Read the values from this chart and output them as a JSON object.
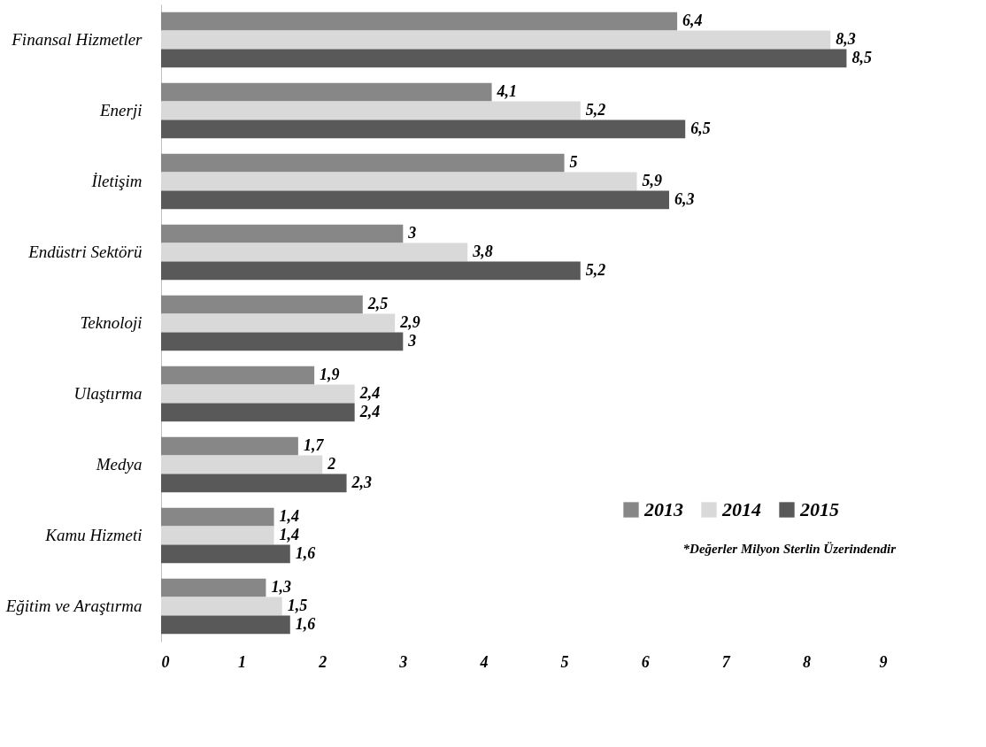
{
  "chart_data": {
    "type": "bar",
    "orientation": "horizontal",
    "categories": [
      "Finansal Hizmetler",
      "Enerji",
      "İletişim",
      "Endüstri Sektörü",
      "Teknoloji",
      "Ulaştırma",
      "Medya",
      "Kamu Hizmeti",
      "Eğitim ve Araştırma"
    ],
    "series": [
      {
        "name": "2013",
        "color": "#878787",
        "values": [
          6.4,
          4.1,
          5,
          3,
          2.5,
          1.9,
          1.7,
          1.4,
          1.3
        ],
        "value_labels": [
          "6,4",
          "4,1",
          "5",
          "3",
          "2,5",
          "1,9",
          "1,7",
          "1,4",
          "1,3"
        ]
      },
      {
        "name": "2014",
        "color": "#d9d9d9",
        "values": [
          8.3,
          5.2,
          5.9,
          3.8,
          2.9,
          2.4,
          2,
          1.4,
          1.5
        ],
        "value_labels": [
          "8,3",
          "5,2",
          "5,9",
          "3,8",
          "2,9",
          "2,4",
          "2",
          "1,4",
          "1,5"
        ]
      },
      {
        "name": "2015",
        "color": "#595959",
        "values": [
          8.5,
          6.5,
          6.3,
          5.2,
          3,
          2.4,
          2.3,
          1.6,
          1.6
        ],
        "value_labels": [
          "8,5",
          "6,5",
          "6,3",
          "5,2",
          "3",
          "2,4",
          "2,3",
          "1,6",
          "1,6"
        ]
      }
    ],
    "xlim": [
      0,
      9
    ],
    "xticks": [
      0,
      1,
      2,
      3,
      4,
      5,
      6,
      7,
      8,
      9
    ],
    "grid": false,
    "legend": "bottom right",
    "annotations": [
      "*Değerler Milyon Sterlin Üzerindendir"
    ]
  }
}
